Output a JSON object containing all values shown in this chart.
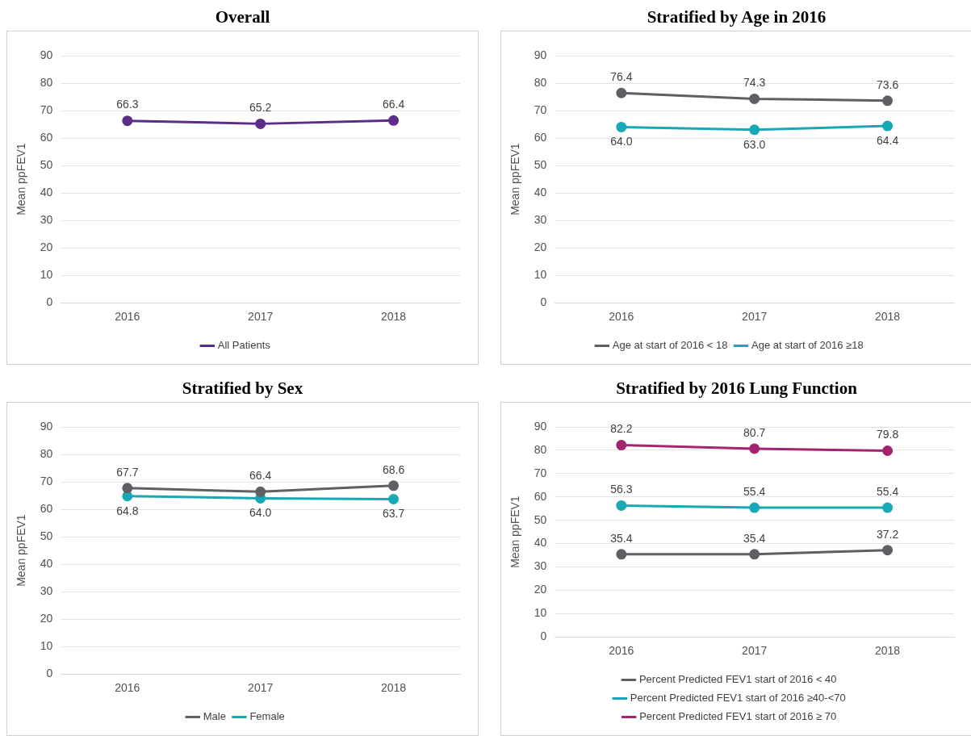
{
  "chart_data": [
    {
      "type": "line",
      "title": "Overall",
      "ylabel": "Mean ppFEV1",
      "categories": [
        "2016",
        "2017",
        "2018"
      ],
      "ylim": [
        0,
        90
      ],
      "yticks": [
        0,
        10,
        20,
        30,
        40,
        50,
        60,
        70,
        80,
        90
      ],
      "grid": "y",
      "legend": "bottom",
      "marker": "circle",
      "series": [
        {
          "name": "All Patients",
          "color": "#5b2c8a",
          "values": [
            66.3,
            65.2,
            66.4
          ],
          "value_labels": [
            "66.3",
            "65.2",
            "66.4"
          ]
        }
      ]
    },
    {
      "type": "line",
      "title": "Stratified by Age in 2016",
      "ylabel": "Mean ppFEV1",
      "categories": [
        "2016",
        "2017",
        "2018"
      ],
      "ylim": [
        0,
        90
      ],
      "yticks": [
        0,
        10,
        20,
        30,
        40,
        50,
        60,
        70,
        80,
        90
      ],
      "grid": "y",
      "legend": "bottom",
      "marker": "circle",
      "series": [
        {
          "name": "Age at start of 2016 < 18",
          "color": "#5f6066",
          "values": [
            76.4,
            74.3,
            73.6
          ],
          "value_labels": [
            "76.4",
            "74.3",
            "73.6"
          ]
        },
        {
          "name": "Age at start of 2016 ≥18",
          "color": "#17a9b5",
          "values": [
            64.0,
            63.0,
            64.4
          ],
          "value_labels": [
            "64.0",
            "63.0",
            "64.4"
          ]
        }
      ]
    },
    {
      "type": "line",
      "title": "Stratified by Sex",
      "ylabel": "Mean ppFEV1",
      "categories": [
        "2016",
        "2017",
        "2018"
      ],
      "ylim": [
        0,
        90
      ],
      "yticks": [
        0,
        10,
        20,
        30,
        40,
        50,
        60,
        70,
        80,
        90
      ],
      "grid": "y",
      "legend": "bottom",
      "marker": "circle",
      "series": [
        {
          "name": "Male",
          "color": "#5f6066",
          "values": [
            67.7,
            66.4,
            68.6
          ],
          "value_labels": [
            "67.7",
            "66.4",
            "68.6"
          ]
        },
        {
          "name": "Female",
          "color": "#17a9b5",
          "values": [
            64.8,
            64.0,
            63.7
          ],
          "value_labels": [
            "64.8",
            "64.0",
            "63.7"
          ]
        }
      ]
    },
    {
      "type": "line",
      "title": "Stratified by 2016 Lung Function",
      "ylabel": "Mean ppFEV1",
      "categories": [
        "2016",
        "2017",
        "2018"
      ],
      "ylim": [
        0,
        90
      ],
      "yticks": [
        0,
        10,
        20,
        30,
        40,
        50,
        60,
        70,
        80,
        90
      ],
      "grid": "y",
      "legend": "bottom",
      "marker": "circle",
      "series": [
        {
          "name": "Percent Predicted FEV1 start of 2016 < 40",
          "color": "#5f6066",
          "values": [
            35.4,
            35.4,
            37.2
          ],
          "value_labels": [
            "35.4",
            "35.4",
            "37.2"
          ]
        },
        {
          "name": "Percent Predicted FEV1 start of 2016 ≥40-<70",
          "color": "#17a9b5",
          "values": [
            56.3,
            55.4,
            55.4
          ],
          "value_labels": [
            "56.3",
            "55.4",
            "55.4"
          ]
        },
        {
          "name": "Percent Predicted FEV1 start of 2016 ≥ 70",
          "color": "#a3256e",
          "values": [
            82.2,
            80.7,
            79.8
          ],
          "value_labels": [
            "82.2",
            "80.7",
            "79.8"
          ]
        }
      ]
    }
  ]
}
